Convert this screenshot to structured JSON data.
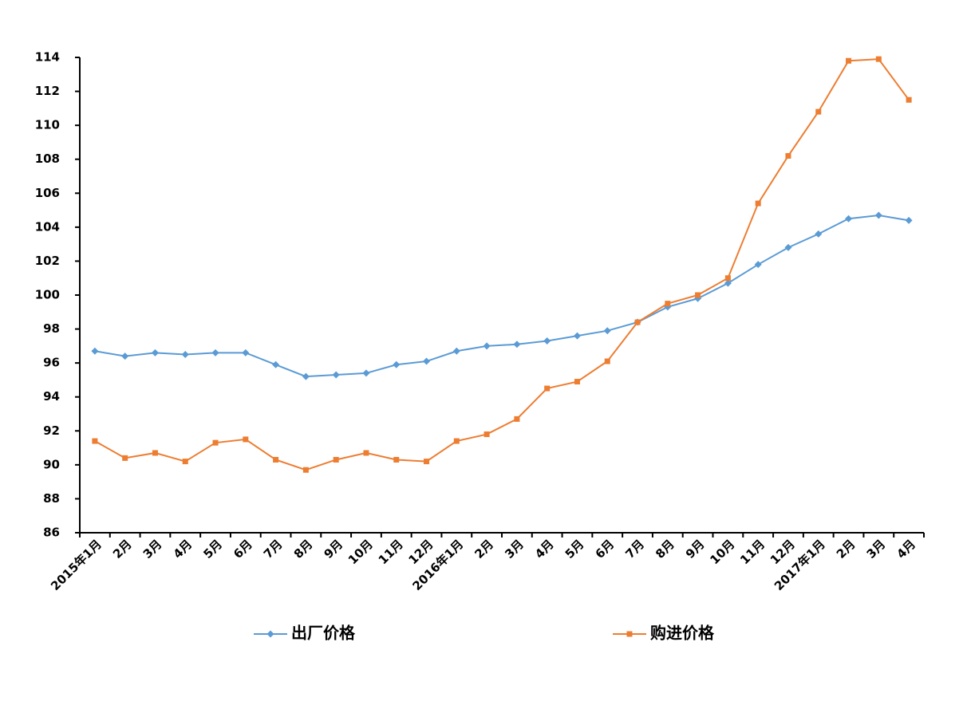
{
  "chart_data": {
    "type": "line",
    "categories": [
      "2015年1月",
      "2月",
      "3月",
      "4月",
      "5月",
      "6月",
      "7月",
      "8月",
      "9月",
      "10月",
      "11月",
      "12月",
      "2016年1月",
      "2月",
      "3月",
      "4月",
      "5月",
      "6月",
      "7月",
      "8月",
      "9月",
      "10月",
      "11月",
      "12月",
      "2017年1月",
      "2月",
      "3月",
      "4月"
    ],
    "series": [
      {
        "name": "出厂价格",
        "color": "#5b9bd5",
        "marker": "diamond",
        "values": [
          96.7,
          96.4,
          96.6,
          96.5,
          96.6,
          96.6,
          95.9,
          95.2,
          95.3,
          95.4,
          95.9,
          96.1,
          96.7,
          97.0,
          97.1,
          97.3,
          97.6,
          97.9,
          98.4,
          99.3,
          99.8,
          100.7,
          101.8,
          102.8,
          103.6,
          104.5,
          104.7,
          104.4
        ]
      },
      {
        "name": "购进价格",
        "color": "#ed7d31",
        "marker": "square",
        "values": [
          91.4,
          90.4,
          90.7,
          90.2,
          91.3,
          91.5,
          90.3,
          89.7,
          90.3,
          90.7,
          90.3,
          90.2,
          91.4,
          91.8,
          92.7,
          94.5,
          94.9,
          96.1,
          98.4,
          99.5,
          100.0,
          101.0,
          105.4,
          108.2,
          110.8,
          113.8,
          113.9,
          111.5
        ]
      }
    ],
    "ylim": [
      86,
      114
    ],
    "yticks": [
      86,
      88,
      90,
      92,
      94,
      96,
      98,
      100,
      102,
      104,
      106,
      108,
      110,
      112,
      114
    ]
  }
}
